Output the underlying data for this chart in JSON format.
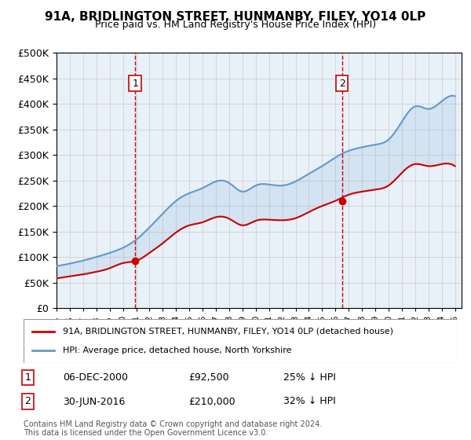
{
  "title": "91A, BRIDLINGTON STREET, HUNMANBY, FILEY, YO14 0LP",
  "subtitle": "Price paid vs. HM Land Registry's House Price Index (HPI)",
  "sale1_date": 2000.92,
  "sale1_price": 92500,
  "sale1_label": "06-DEC-2000",
  "sale1_hpi_diff": "25% ↓ HPI",
  "sale2_date": 2016.5,
  "sale2_price": 210000,
  "sale2_label": "30-JUN-2016",
  "sale2_hpi_diff": "32% ↓ HPI",
  "legend1": "91A, BRIDLINGTON STREET, HUNMANBY, FILEY, YO14 0LP (detached house)",
  "legend2": "HPI: Average price, detached house, North Yorkshire",
  "footnote": "Contains HM Land Registry data © Crown copyright and database right 2024.\nThis data is licensed under the Open Government Licence v3.0.",
  "hpi_color": "#6699cc",
  "price_color": "#cc0000",
  "bg_color": "#e8f0f8",
  "ylim_min": 0,
  "ylim_max": 500000,
  "xlim_min": 1995,
  "xlim_max": 2025.5
}
